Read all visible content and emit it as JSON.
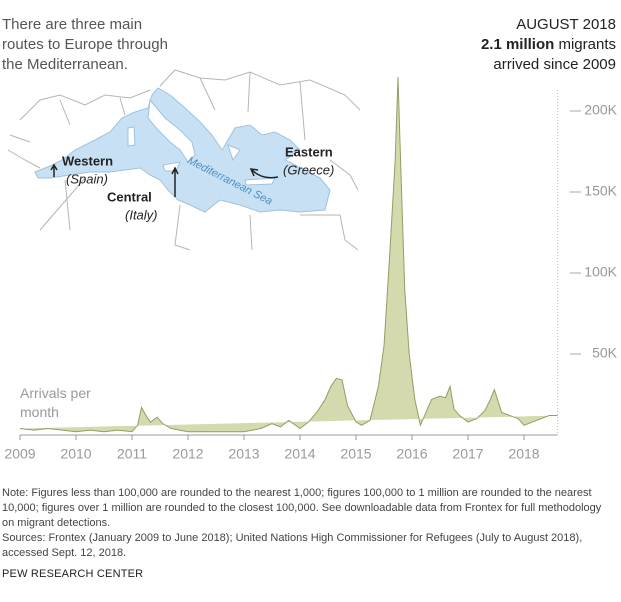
{
  "intro": "There are three main routes to Europe through the Mediterranean.",
  "date": "AUGUST 2018",
  "headline_bold": "2.1 million",
  "headline_rest": "migrants arrived since 2009",
  "map": {
    "labels": [
      "Western",
      "(Spain)",
      "Central",
      "(Italy)",
      "Eastern",
      "(Greece)",
      "Mediterranean Sea"
    ]
  },
  "chart_data": {
    "type": "area",
    "annotation": "Arrivals per month",
    "color": "#d5d9ae",
    "line_color": "#959c66",
    "x": [
      2009.0,
      2009.25,
      2009.5,
      2009.75,
      2010.0,
      2010.25,
      2010.5,
      2010.75,
      2011.0,
      2011.1,
      2011.17,
      2011.25,
      2011.33,
      2011.45,
      2011.55,
      2011.7,
      2011.85,
      2012.0,
      2012.5,
      2013.0,
      2013.3,
      2013.5,
      2013.65,
      2013.8,
      2014.0,
      2014.15,
      2014.3,
      2014.45,
      2014.55,
      2014.65,
      2014.75,
      2014.85,
      2015.0,
      2015.1,
      2015.25,
      2015.4,
      2015.5,
      2015.6,
      2015.7,
      2015.75,
      2015.8,
      2015.87,
      2015.95,
      2016.05,
      2016.15,
      2016.25,
      2016.35,
      2016.5,
      2016.6,
      2016.68,
      2016.75,
      2016.85,
      2017.0,
      2017.15,
      2017.3,
      2017.4,
      2017.47,
      2017.6,
      2017.75,
      2017.9,
      2018.0,
      2018.15,
      2018.3,
      2018.45,
      2018.6
    ],
    "values": [
      4000,
      3000,
      4000,
      3000,
      2000,
      3000,
      2000,
      3000,
      2000,
      6000,
      17000,
      12000,
      8000,
      11000,
      7000,
      4000,
      3000,
      2000,
      2000,
      2000,
      4000,
      7000,
      5000,
      9000,
      4000,
      8000,
      14000,
      22000,
      30000,
      35000,
      34000,
      18000,
      8000,
      6000,
      9000,
      30000,
      55000,
      110000,
      170000,
      221000,
      165000,
      90000,
      50000,
      22000,
      6000,
      14000,
      22000,
      24000,
      23000,
      30000,
      16000,
      12000,
      8000,
      10000,
      15000,
      22000,
      28000,
      14000,
      12000,
      10000,
      6000,
      8000,
      10000,
      12000,
      12000
    ],
    "xlim": [
      2009,
      2018.6
    ],
    "xticks": [
      2009,
      2010,
      2011,
      2012,
      2013,
      2014,
      2015,
      2016,
      2017,
      2018
    ],
    "ylim": [
      0,
      230000
    ],
    "yticks": [
      {
        "value": 50000,
        "label": "50K"
      },
      {
        "value": 100000,
        "label": "100K"
      },
      {
        "value": 150000,
        "label": "150K"
      },
      {
        "value": 200000,
        "label": "200K"
      }
    ]
  },
  "note": "Note: Figures less than 100,000 are rounded to the nearest 1,000; figures 100,000 to 1 million are rounded to the nearest 10,000; figures over 1 million are rounded to the closest 100,000. See downloadable data from Frontex for full methodology on migrant detections.",
  "sources": "Sources: Frontex (January 2009 to June 2018); United Nations High Commissioner for Refugees (July to August 2018), accessed Sept. 12, 2018.",
  "footer": "PEW RESEARCH CENTER"
}
